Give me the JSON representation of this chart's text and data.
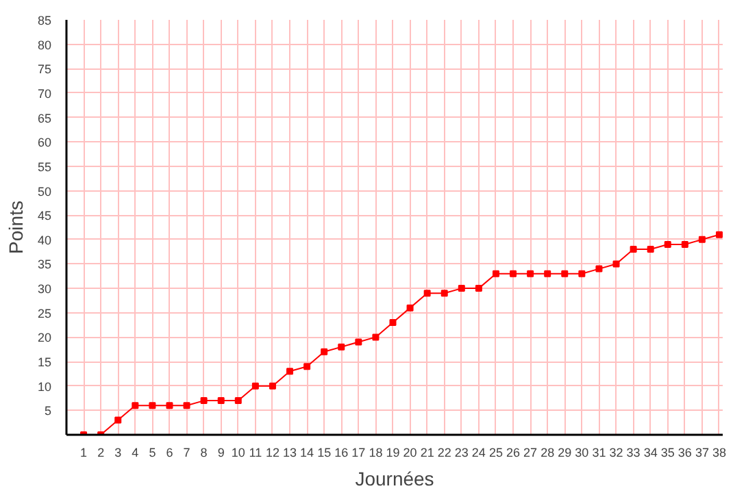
{
  "chart_data": {
    "type": "line",
    "xlabel": "Journées",
    "ylabel": "Points",
    "x": [
      1,
      2,
      3,
      4,
      5,
      6,
      7,
      8,
      9,
      10,
      11,
      12,
      13,
      14,
      15,
      16,
      17,
      18,
      19,
      20,
      21,
      22,
      23,
      24,
      25,
      26,
      27,
      28,
      29,
      30,
      31,
      32,
      33,
      34,
      35,
      36,
      37,
      38
    ],
    "series": [
      {
        "color": "#ff0000",
        "values": [
          0,
          0,
          3,
          6,
          6,
          6,
          6,
          7,
          7,
          7,
          10,
          10,
          13,
          14,
          17,
          18,
          19,
          20,
          23,
          26,
          29,
          29,
          30,
          30,
          33,
          33,
          33,
          33,
          33,
          33,
          34,
          35,
          38,
          38,
          39,
          39,
          40,
          41
        ]
      }
    ],
    "xlim": [
      0,
      38.2
    ],
    "xticks": [
      1,
      2,
      3,
      4,
      5,
      6,
      7,
      8,
      9,
      10,
      11,
      12,
      13,
      14,
      15,
      16,
      17,
      18,
      19,
      20,
      21,
      22,
      23,
      24,
      25,
      26,
      27,
      28,
      29,
      30,
      31,
      32,
      33,
      34,
      35,
      36,
      37,
      38
    ],
    "ylim": [
      0,
      85
    ],
    "yticks": [
      5,
      10,
      15,
      20,
      25,
      30,
      35,
      40,
      45,
      50,
      55,
      60,
      65,
      70,
      75,
      80,
      85
    ],
    "grid": true,
    "marker": "square",
    "line_style": "solid"
  }
}
